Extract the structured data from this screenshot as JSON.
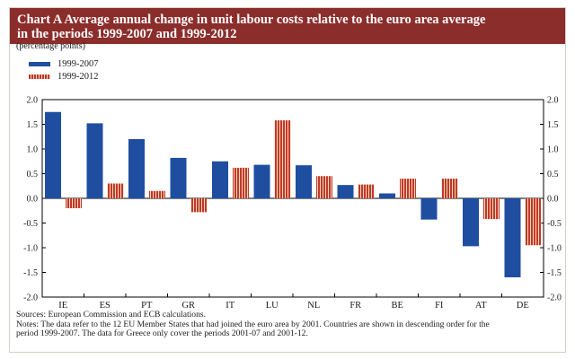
{
  "title_lines": [
    "Chart A Average annual change in unit labour costs relative to the euro area average",
    "in the periods 1999-2007 and 1999-2012"
  ],
  "unit_label": "(percentage points)",
  "legend": [
    "1999-2007",
    "1999-2012"
  ],
  "notes": [
    "Sources: European Commission and ECB calculations.",
    "Notes: The data refer to the 12 EU Member States that had joined the euro area by 2001. Countries are shown in descending order for the",
    "period 1999-2007. The data for Greece only cover the periods 2001-07 and 2001-12."
  ],
  "colors": {
    "title_bg": "#8b2d2b",
    "series1": "#1f4ea1",
    "series2": "#c0392b"
  },
  "chart_data": {
    "type": "bar",
    "categories": [
      "IE",
      "ES",
      "PT",
      "GR",
      "IT",
      "LU",
      "NL",
      "FR",
      "BE",
      "FI",
      "AT",
      "DE"
    ],
    "series": [
      {
        "name": "1999-2007",
        "values": [
          1.75,
          1.52,
          1.2,
          0.82,
          0.75,
          0.68,
          0.67,
          0.27,
          0.1,
          -0.43,
          -0.97,
          -1.6
        ]
      },
      {
        "name": "1999-2012",
        "values": [
          -0.2,
          0.3,
          0.15,
          -0.28,
          0.62,
          1.58,
          0.45,
          0.28,
          0.4,
          0.4,
          -0.42,
          -0.95
        ]
      }
    ],
    "ylim": [
      -2.0,
      2.0
    ],
    "yticks": [
      "2.0",
      "1.5",
      "1.0",
      "0.5",
      "0.0",
      "-0.5",
      "-1.0",
      "-1.5",
      "-2.0"
    ],
    "grid": false,
    "legend_position": "top-left"
  }
}
